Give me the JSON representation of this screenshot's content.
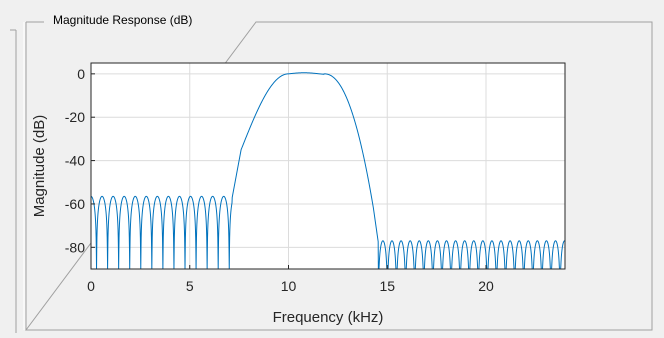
{
  "panel": {
    "title": "Magnitude Response (dB)"
  },
  "chart_data": {
    "type": "line",
    "title": "",
    "xlabel": "Frequency (kHz)",
    "ylabel": "Magnitude (dB)",
    "xlim": [
      0,
      24
    ],
    "ylim": [
      -90,
      5
    ],
    "xticks": [
      0,
      5,
      10,
      15,
      20
    ],
    "yticks": [
      0,
      -20,
      -40,
      -60,
      -80
    ],
    "grid": true,
    "line_color": "#0072bd",
    "description_points": {
      "x": [
        0,
        0.5,
        1,
        1.5,
        2,
        2.5,
        3,
        3.5,
        4,
        4.5,
        5,
        5.5,
        6,
        6.5,
        7,
        7.2,
        7.5,
        8,
        8.5,
        9,
        9.5,
        10,
        10.5,
        11,
        11.5,
        12,
        12.5,
        13,
        13.5,
        14,
        14.3,
        14.5,
        15,
        16,
        17,
        18,
        19,
        20,
        21,
        22,
        23,
        24
      ],
      "y": [
        -57,
        -58,
        -57,
        -58,
        -57,
        -58,
        -57,
        -58,
        -57,
        -58,
        -57,
        -58,
        -57,
        -58,
        -57,
        -57,
        -40,
        -20,
        -9,
        -4,
        -1.5,
        -0.5,
        -0.5,
        0,
        0.5,
        -1,
        -5,
        -15,
        -35,
        -55,
        -70,
        -78,
        -78,
        -78,
        -78,
        -78,
        -78,
        -78,
        -78,
        -78,
        -78,
        -78
      ]
    }
  }
}
